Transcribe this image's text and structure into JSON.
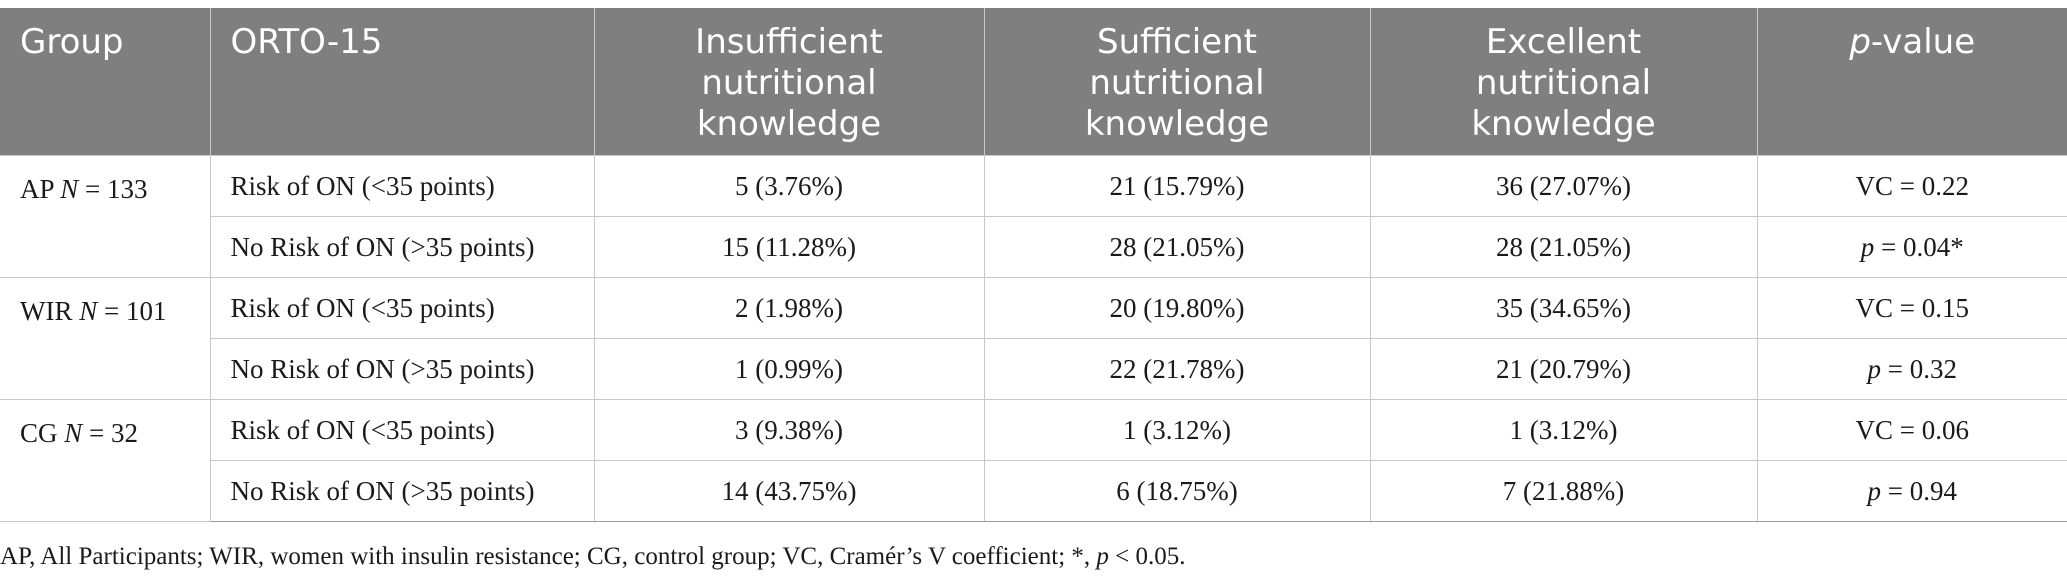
{
  "headers": {
    "group": "Group",
    "orto": "ORTO-15",
    "insufficient": [
      "Insufficient",
      "nutritional",
      "knowledge"
    ],
    "sufficient": [
      "Sufficient",
      "nutritional",
      "knowledge"
    ],
    "excellent": [
      "Excellent",
      "nutritional",
      "knowledge"
    ],
    "pvalue_italic": "p",
    "pvalue_rest": "-value"
  },
  "groups": [
    {
      "label": "AP",
      "n_label": "N",
      "n_value": " = 133",
      "rows": [
        {
          "orto": "Risk of ON (<35 points)",
          "insufficient": "5 (3.76%)",
          "sufficient": "21 (15.79%)",
          "excellent": "36 (27.07%)",
          "stat": "VC = 0.22"
        },
        {
          "orto": "No Risk of ON (>35 points)",
          "insufficient": "15 (11.28%)",
          "sufficient": "28 (21.05%)",
          "excellent": "28 (21.05%)",
          "p_label": "p",
          "p_value": " = 0.04*"
        }
      ]
    },
    {
      "label": "WIR",
      "n_label": "N",
      "n_value": " = 101",
      "rows": [
        {
          "orto": "Risk of ON (<35 points)",
          "insufficient": "2 (1.98%)",
          "sufficient": "20 (19.80%)",
          "excellent": "35 (34.65%)",
          "stat": "VC = 0.15"
        },
        {
          "orto": "No Risk of ON (>35 points)",
          "insufficient": "1 (0.99%)",
          "sufficient": "22 (21.78%)",
          "excellent": "21 (20.79%)",
          "p_label": "p",
          "p_value": " = 0.32"
        }
      ]
    },
    {
      "label": "CG",
      "n_label": "N",
      "n_value": " = 32",
      "rows": [
        {
          "orto": "Risk of ON (<35 points)",
          "insufficient": "3 (9.38%)",
          "sufficient": "1 (3.12%)",
          "excellent": "1 (3.12%)",
          "stat": "VC = 0.06"
        },
        {
          "orto": "No Risk of ON (>35 points)",
          "insufficient": "14 (43.75%)",
          "sufficient": "6 (18.75%)",
          "excellent": "7 (21.88%)",
          "p_label": "p",
          "p_value": " = 0.94"
        }
      ]
    }
  ],
  "footnote": {
    "text": "AP, All Participants; WIR, women with insulin resistance; CG, control group; VC, Cramér’s V coefficient; *, ",
    "p_italic": "p",
    "tail": " < 0.05."
  },
  "colors": {
    "header_bg": "#7f7f7f",
    "header_text": "#ffffff",
    "grid": "#c8c8c8"
  }
}
